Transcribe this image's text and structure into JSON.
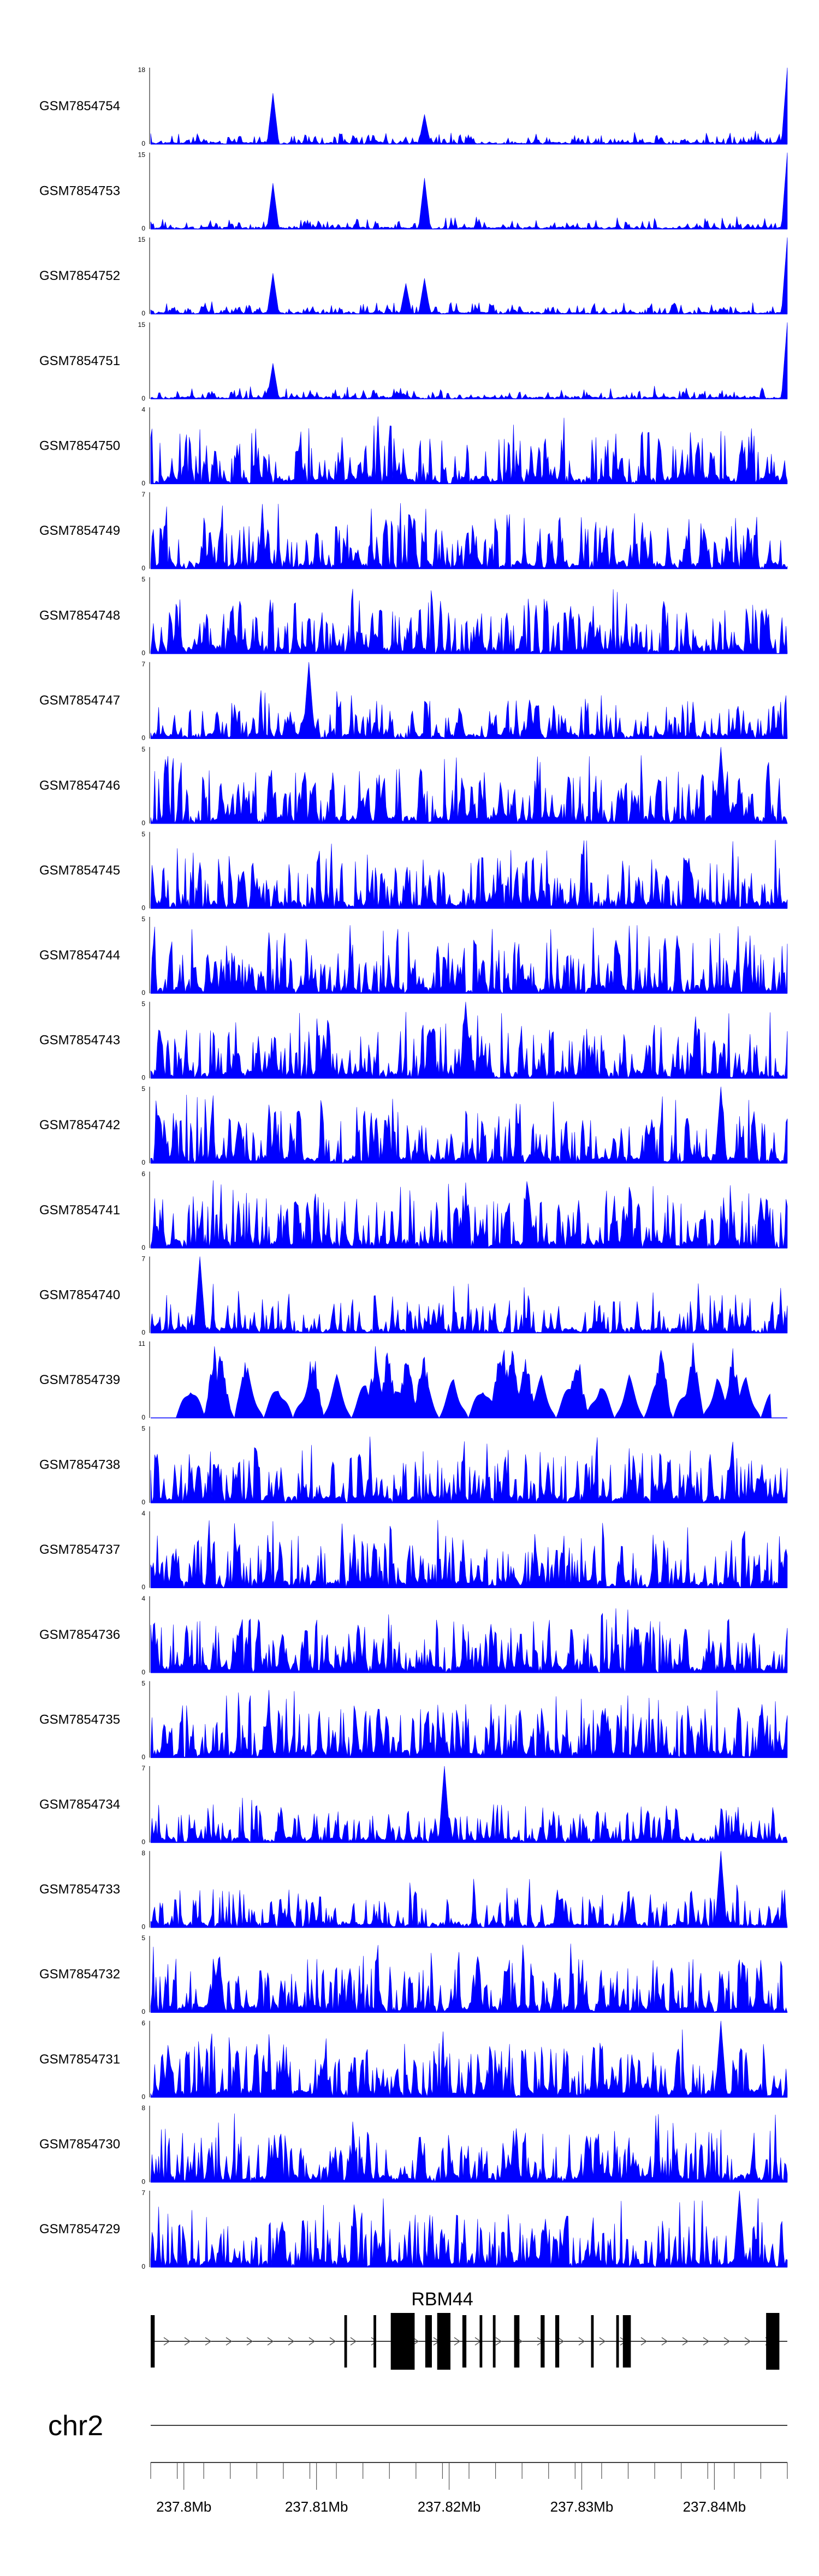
{
  "chart_data": {
    "type": "area",
    "color": "#0000ff",
    "xrange": [
      237.7975,
      237.8455
    ],
    "tracks": [
      {
        "name": "GSM7854754",
        "ymax": 18,
        "seed": 754,
        "spikes": [
          [
            237.8067,
            12
          ],
          [
            237.8181,
            7
          ],
          [
            237.8455,
            18
          ]
        ],
        "pattern": "sparse"
      },
      {
        "name": "GSM7854753",
        "ymax": 15,
        "seed": 753,
        "spikes": [
          [
            237.8067,
            9
          ],
          [
            237.8181,
            10
          ],
          [
            237.8455,
            15
          ]
        ],
        "pattern": "sparse"
      },
      {
        "name": "GSM7854752",
        "ymax": 15,
        "seed": 752,
        "spikes": [
          [
            237.8067,
            8
          ],
          [
            237.8167,
            6
          ],
          [
            237.8181,
            7
          ],
          [
            237.8455,
            15
          ]
        ],
        "pattern": "sparse"
      },
      {
        "name": "GSM7854751",
        "ymax": 15,
        "seed": 751,
        "spikes": [
          [
            237.8067,
            7
          ],
          [
            237.8455,
            15
          ]
        ],
        "pattern": "sparse"
      },
      {
        "name": "GSM7854750",
        "ymax": 4,
        "seed": 750,
        "spikes": [],
        "pattern": "dense"
      },
      {
        "name": "GSM7854749",
        "ymax": 7,
        "seed": 749,
        "spikes": [],
        "pattern": "dense"
      },
      {
        "name": "GSM7854748",
        "ymax": 5,
        "seed": 748,
        "spikes": [],
        "pattern": "dense"
      },
      {
        "name": "GSM7854747",
        "ymax": 7,
        "seed": 747,
        "spikes": [
          [
            237.8094,
            7
          ]
        ],
        "pattern": "medium"
      },
      {
        "name": "GSM7854746",
        "ymax": 5,
        "seed": 746,
        "spikes": [
          [
            237.8405,
            5
          ]
        ],
        "pattern": "dense"
      },
      {
        "name": "GSM7854745",
        "ymax": 5,
        "seed": 745,
        "spikes": [],
        "pattern": "dense"
      },
      {
        "name": "GSM7854744",
        "ymax": 5,
        "seed": 744,
        "spikes": [],
        "pattern": "dense"
      },
      {
        "name": "GSM7854743",
        "ymax": 5,
        "seed": 743,
        "spikes": [
          [
            237.8212,
            5
          ]
        ],
        "pattern": "dense"
      },
      {
        "name": "GSM7854742",
        "ymax": 5,
        "seed": 742,
        "spikes": [
          [
            237.8405,
            5
          ]
        ],
        "pattern": "dense"
      },
      {
        "name": "GSM7854741",
        "ymax": 6,
        "seed": 741,
        "spikes": [],
        "pattern": "dense"
      },
      {
        "name": "GSM7854740",
        "ymax": 7,
        "seed": 740,
        "spikes": [
          [
            237.8012,
            7
          ]
        ],
        "pattern": "medium"
      },
      {
        "name": "GSM7854739",
        "ymax": 11,
        "seed": 739,
        "spikes": [],
        "pattern": "triangles"
      },
      {
        "name": "GSM7854738",
        "ymax": 5,
        "seed": 738,
        "spikes": [],
        "pattern": "dense"
      },
      {
        "name": "GSM7854737",
        "ymax": 4,
        "seed": 737,
        "spikes": [],
        "pattern": "dense"
      },
      {
        "name": "GSM7854736",
        "ymax": 4,
        "seed": 736,
        "spikes": [],
        "pattern": "dense"
      },
      {
        "name": "GSM7854735",
        "ymax": 5,
        "seed": 735,
        "spikes": [],
        "pattern": "dense"
      },
      {
        "name": "GSM7854734",
        "ymax": 7,
        "seed": 734,
        "spikes": [
          [
            237.8196,
            7
          ]
        ],
        "pattern": "medium"
      },
      {
        "name": "GSM7854733",
        "ymax": 8,
        "seed": 733,
        "spikes": [
          [
            237.8405,
            8
          ]
        ],
        "pattern": "medium"
      },
      {
        "name": "GSM7854732",
        "ymax": 5,
        "seed": 732,
        "spikes": [],
        "pattern": "dense"
      },
      {
        "name": "GSM7854731",
        "ymax": 6,
        "seed": 731,
        "spikes": [
          [
            237.8405,
            6
          ]
        ],
        "pattern": "dense"
      },
      {
        "name": "GSM7854730",
        "ymax": 8,
        "seed": 730,
        "spikes": [],
        "pattern": "dense"
      },
      {
        "name": "GSM7854729",
        "ymax": 7,
        "seed": 729,
        "spikes": [
          [
            237.8419,
            7
          ]
        ],
        "pattern": "dense"
      }
    ],
    "gene": {
      "name": "RBM44",
      "start": 237.7975,
      "end": 237.8455,
      "strand": "+",
      "exons": [
        [
          237.7975,
          237.7978
        ],
        [
          237.8121,
          237.8123
        ],
        [
          237.8143,
          237.8145
        ],
        [
          237.8156,
          237.8174
        ],
        [
          237.8182,
          237.8187
        ],
        [
          237.8191,
          237.8201
        ],
        [
          237.821,
          237.8213
        ],
        [
          237.8223,
          237.8225
        ],
        [
          237.8233,
          237.8235
        ],
        [
          237.8249,
          237.8253
        ],
        [
          237.8269,
          237.8272
        ],
        [
          237.828,
          237.8283
        ],
        [
          237.8307,
          237.8309
        ],
        [
          237.8326,
          237.8328
        ],
        [
          237.8331,
          237.8337
        ],
        [
          237.8439,
          237.8449
        ]
      ]
    },
    "chromosome": "chr2",
    "xticks": [
      {
        "value": 237.8,
        "label": "237.8Mb"
      },
      {
        "value": 237.81,
        "label": "237.81Mb"
      },
      {
        "value": 237.82,
        "label": "237.82Mb"
      },
      {
        "value": 237.83,
        "label": "237.83Mb"
      },
      {
        "value": 237.84,
        "label": "237.84Mb"
      }
    ],
    "minor_tick_step": 0.002
  }
}
